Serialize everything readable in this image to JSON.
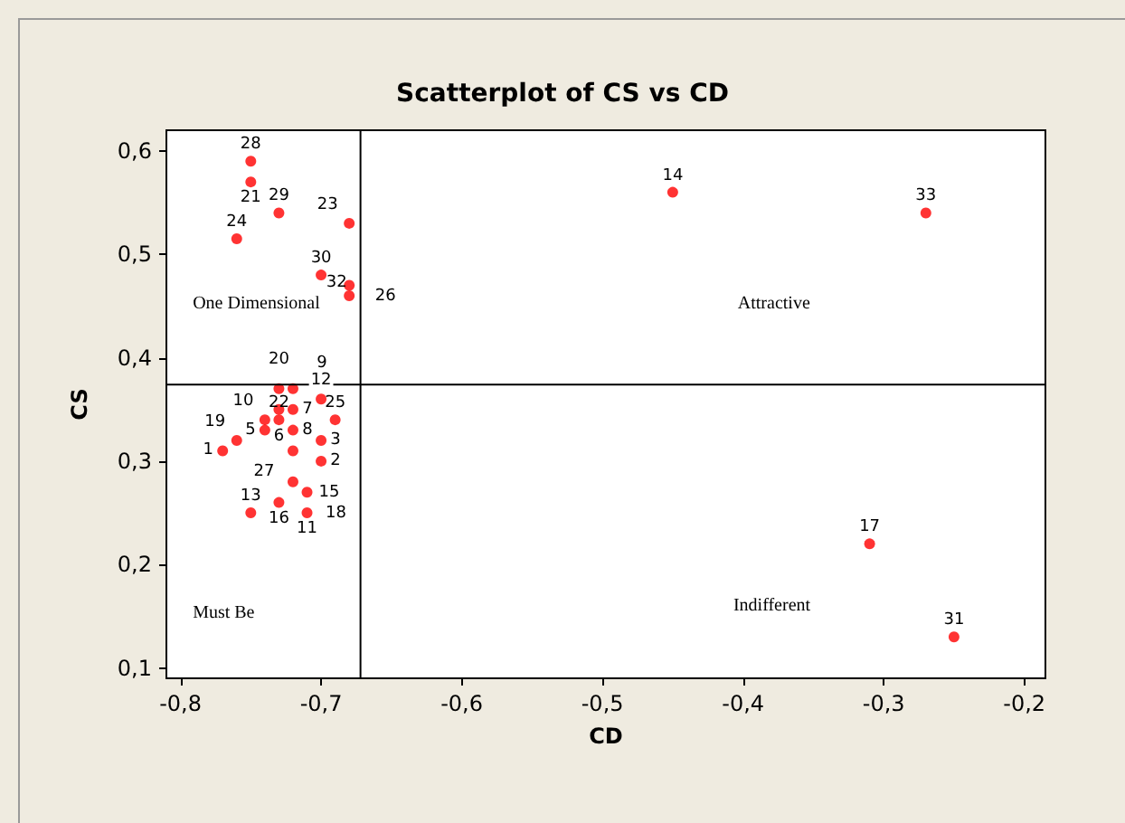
{
  "chart_data": {
    "type": "scatter",
    "title": "Scatterplot of CS vs CD",
    "xlabel": "CD",
    "ylabel": "CS",
    "x": [
      -0.75,
      -0.75,
      -0.73,
      -0.76,
      -0.68,
      -0.7,
      -0.68,
      -0.68,
      -0.45,
      -0.27,
      -0.31,
      -0.25,
      -0.73,
      -0.72,
      -0.73,
      -0.72,
      -0.74,
      -0.73,
      -0.72,
      -0.74,
      -0.7,
      -0.69,
      -0.76,
      -0.77,
      -0.72,
      -0.7,
      -0.7,
      -0.72,
      -0.71,
      -0.73,
      -0.71,
      -0.75
    ],
    "series": [
      {
        "color": "#ff0000",
        "values": [
          0.59,
          0.57,
          0.54,
          0.515,
          0.53,
          0.48,
          0.47,
          0.46,
          0.56,
          0.54,
          0.22,
          0.13,
          0.37,
          0.37,
          0.35,
          0.35,
          0.34,
          0.34,
          0.33,
          0.33,
          0.36,
          0.34,
          0.32,
          0.31,
          0.31,
          0.32,
          0.3,
          0.28,
          0.27,
          0.26,
          0.25,
          0.25
        ]
      }
    ],
    "xlim": [
      -0.81,
      -0.185
    ],
    "ylim": [
      0.09,
      0.62
    ],
    "xticks": [
      {
        "value": -0.8,
        "label": "-0,8"
      },
      {
        "value": -0.7,
        "label": "-0,7"
      },
      {
        "value": -0.6,
        "label": "-0,6"
      },
      {
        "value": -0.5,
        "label": "-0,5"
      },
      {
        "value": -0.4,
        "label": "-0,4"
      },
      {
        "value": -0.3,
        "label": "-0,3"
      },
      {
        "value": -0.2,
        "label": "-0,2"
      }
    ],
    "yticks": [
      {
        "value": 0.1,
        "label": "0,1"
      },
      {
        "value": 0.2,
        "label": "0,2"
      },
      {
        "value": 0.3,
        "label": "0,3"
      },
      {
        "value": 0.4,
        "label": "0,4"
      },
      {
        "value": 0.5,
        "label": "0,5"
      },
      {
        "value": 0.6,
        "label": "0,6"
      }
    ],
    "ref_lines": [
      {
        "axis": "x",
        "value": -0.672,
        "color": "#000000"
      },
      {
        "axis": "y",
        "value": 0.374,
        "color": "#000000"
      }
    ],
    "annotations": [
      "One Dimensional",
      "Attractive",
      "Must Be",
      "Indifferent",
      {
        "text": "28",
        "x": -0.75,
        "y": 0.59
      },
      {
        "text": "21",
        "x": -0.75,
        "y": 0.57
      },
      {
        "text": "29",
        "x": -0.73,
        "y": 0.54
      },
      {
        "text": "24",
        "x": -0.76,
        "y": 0.515
      },
      {
        "text": "23",
        "x": -0.68,
        "y": 0.53
      },
      {
        "text": "30",
        "x": -0.7,
        "y": 0.48
      },
      {
        "text": "26",
        "x": -0.68,
        "y": 0.47
      },
      {
        "text": "32",
        "x": -0.68,
        "y": 0.46
      },
      {
        "text": "14",
        "x": -0.45,
        "y": 0.56
      },
      {
        "text": "33",
        "x": -0.27,
        "y": 0.54
      },
      {
        "text": "17",
        "x": -0.31,
        "y": 0.22
      },
      {
        "text": "31",
        "x": -0.25,
        "y": 0.13
      },
      {
        "text": "20",
        "x": -0.73,
        "y": 0.37
      },
      {
        "text": "9",
        "x": -0.72,
        "y": 0.37
      },
      {
        "text": "6",
        "x": -0.73,
        "y": 0.35
      },
      {
        "text": "7",
        "x": -0.72,
        "y": 0.35
      },
      {
        "text": "10",
        "x": -0.74,
        "y": 0.34
      },
      {
        "text": "22",
        "x": -0.73,
        "y": 0.34
      },
      {
        "text": "8",
        "x": -0.72,
        "y": 0.33
      },
      {
        "text": "5",
        "x": -0.74,
        "y": 0.33
      },
      {
        "text": "12",
        "x": -0.7,
        "y": 0.36
      },
      {
        "text": "25",
        "x": -0.69,
        "y": 0.34
      },
      {
        "text": "19",
        "x": -0.76,
        "y": 0.32
      },
      {
        "text": "1",
        "x": -0.77,
        "y": 0.31
      },
      {
        "text": "27",
        "x": -0.72,
        "y": 0.31
      },
      {
        "text": "3",
        "x": -0.7,
        "y": 0.32
      },
      {
        "text": "2",
        "x": -0.7,
        "y": 0.3
      },
      {
        "text": "15",
        "x": -0.72,
        "y": 0.28
      },
      {
        "text": "18",
        "x": -0.71,
        "y": 0.27
      },
      {
        "text": "16",
        "x": -0.73,
        "y": 0.26
      },
      {
        "text": "11",
        "x": -0.71,
        "y": 0.25
      },
      {
        "text": "13",
        "x": -0.75,
        "y": 0.25
      }
    ],
    "marker": "circle",
    "grid": false
  }
}
